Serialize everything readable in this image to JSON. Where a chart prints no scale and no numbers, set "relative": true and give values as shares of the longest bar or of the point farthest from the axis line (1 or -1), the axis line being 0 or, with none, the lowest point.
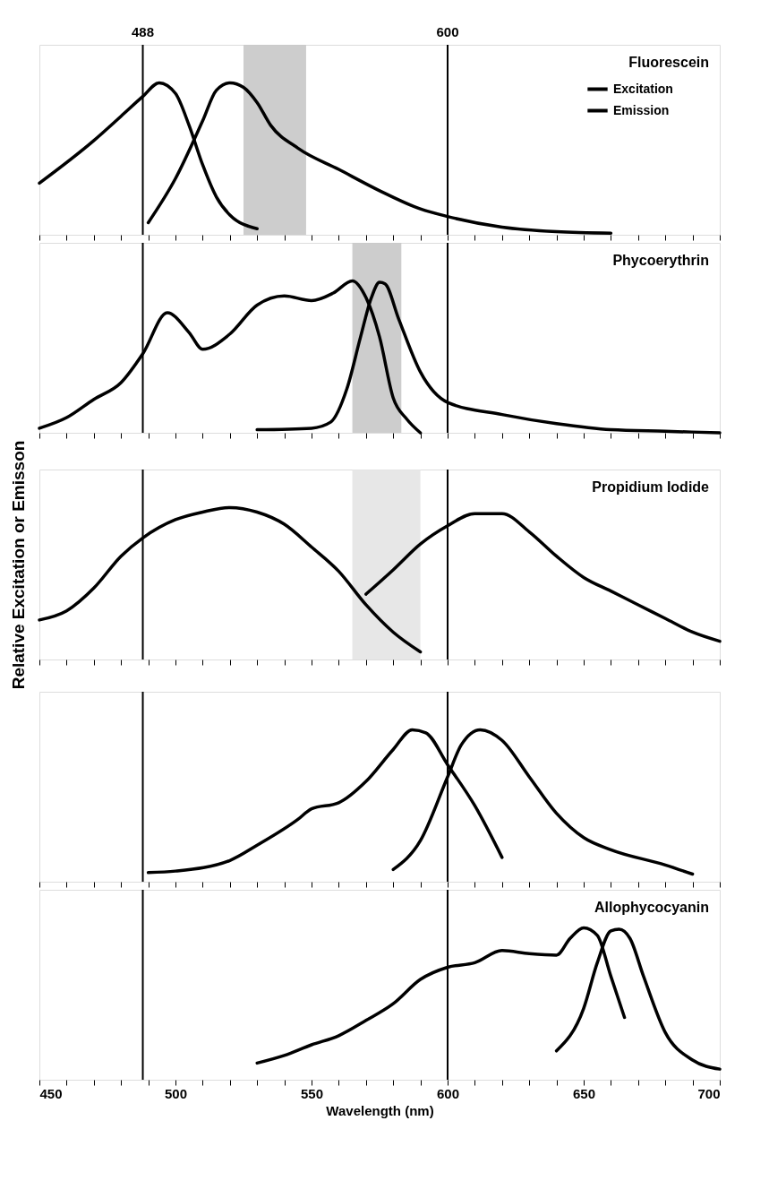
{
  "chart_data": [
    {
      "type": "line",
      "title": "Fluorescein",
      "relative": true,
      "xlim": [
        450,
        700
      ],
      "xticks": [
        {
          "value": 450,
          "label": null
        },
        {
          "value": 460,
          "label": null
        },
        {
          "value": 470,
          "label": null
        },
        {
          "value": 480,
          "label": null
        },
        {
          "value": 490,
          "label": null
        },
        {
          "value": 500,
          "label": null
        },
        {
          "value": 510,
          "label": null
        },
        {
          "value": 520,
          "label": null
        },
        {
          "value": 530,
          "label": null
        },
        {
          "value": 540,
          "label": null
        },
        {
          "value": 550,
          "label": null
        },
        {
          "value": 560,
          "label": null
        },
        {
          "value": 570,
          "label": null
        },
        {
          "value": 580,
          "label": null
        },
        {
          "value": 590,
          "label": null
        },
        {
          "value": 600,
          "label": null
        },
        {
          "value": 610,
          "label": null
        },
        {
          "value": 620,
          "label": null
        },
        {
          "value": 630,
          "label": null
        },
        {
          "value": 640,
          "label": null
        },
        {
          "value": 650,
          "label": null
        },
        {
          "value": 660,
          "label": null
        },
        {
          "value": 670,
          "label": null
        },
        {
          "value": 680,
          "label": null
        },
        {
          "value": 690,
          "label": null
        },
        {
          "value": 700,
          "label": null
        }
      ],
      "tick_labels": false,
      "legend": "top right",
      "line_style": "solid",
      "marker": "none",
      "ref_lines": [
        {
          "axis": "x",
          "value": 488,
          "label": "488",
          "color": "#000000"
        },
        {
          "axis": "x",
          "value": 600,
          "label": "600",
          "color": "#000000"
        }
      ],
      "bands": [
        {
          "axis": "x",
          "from": 525,
          "to": 548,
          "color": "#c8c8c8"
        }
      ],
      "series": [
        {
          "name": "Excitation",
          "color": "#000000",
          "x": [
            450,
            470,
            480,
            488,
            494,
            500,
            505,
            510,
            515,
            520,
            530
          ],
          "values": [
            0.34,
            0.62,
            0.78,
            0.91,
            1.0,
            0.93,
            0.72,
            0.46,
            0.25,
            0.13,
            0.04
          ]
        },
        {
          "name": "Emission",
          "color": "#000000",
          "x": [
            490,
            500,
            510,
            515,
            520,
            525,
            530,
            535,
            545,
            560,
            575,
            590,
            600,
            620,
            640,
            660
          ],
          "values": [
            0.08,
            0.37,
            0.75,
            0.95,
            1.0,
            0.97,
            0.87,
            0.72,
            0.57,
            0.43,
            0.29,
            0.17,
            0.12,
            0.05,
            0.02,
            0.01
          ]
        }
      ]
    },
    {
      "type": "line",
      "title": "Phycoerythrin",
      "relative": true,
      "xlim": [
        450,
        700
      ],
      "xticks": [
        {
          "value": 450,
          "label": null
        },
        {
          "value": 460,
          "label": null
        },
        {
          "value": 470,
          "label": null
        },
        {
          "value": 480,
          "label": null
        },
        {
          "value": 490,
          "label": null
        },
        {
          "value": 500,
          "label": null
        },
        {
          "value": 510,
          "label": null
        },
        {
          "value": 520,
          "label": null
        },
        {
          "value": 530,
          "label": null
        },
        {
          "value": 540,
          "label": null
        },
        {
          "value": 550,
          "label": null
        },
        {
          "value": 560,
          "label": null
        },
        {
          "value": 570,
          "label": null
        },
        {
          "value": 580,
          "label": null
        },
        {
          "value": 590,
          "label": null
        },
        {
          "value": 600,
          "label": null
        },
        {
          "value": 610,
          "label": null
        },
        {
          "value": 620,
          "label": null
        },
        {
          "value": 630,
          "label": null
        },
        {
          "value": 640,
          "label": null
        },
        {
          "value": 650,
          "label": null
        },
        {
          "value": 660,
          "label": null
        },
        {
          "value": 670,
          "label": null
        },
        {
          "value": 680,
          "label": null
        },
        {
          "value": 690,
          "label": null
        },
        {
          "value": 700,
          "label": null
        }
      ],
      "tick_labels": false,
      "line_style": "solid",
      "marker": "none",
      "ref_lines": [
        {
          "axis": "x",
          "value": 488,
          "color": "#000000"
        },
        {
          "axis": "x",
          "value": 600,
          "color": "#000000"
        }
      ],
      "bands": [
        {
          "axis": "x",
          "from": 565,
          "to": 583,
          "color": "#c8c8c8"
        }
      ],
      "series": [
        {
          "color": "#000000",
          "x": [
            450,
            460,
            470,
            480,
            488,
            497,
            505,
            510,
            520,
            530,
            540,
            550,
            558,
            565,
            570,
            575,
            580,
            585,
            590
          ],
          "values": [
            0.03,
            0.1,
            0.22,
            0.33,
            0.52,
            0.79,
            0.66,
            0.55,
            0.65,
            0.84,
            0.9,
            0.87,
            0.92,
            1.0,
            0.89,
            0.63,
            0.23,
            0.09,
            0.0
          ]
        },
        {
          "color": "#000000",
          "x": [
            530,
            550,
            557,
            563,
            568,
            572,
            575,
            577,
            582,
            590,
            600,
            620,
            640,
            660,
            680,
            700
          ],
          "values": [
            0.02,
            0.03,
            0.07,
            0.29,
            0.63,
            0.89,
            0.99,
            0.98,
            0.75,
            0.4,
            0.2,
            0.12,
            0.06,
            0.02,
            0.01,
            0.0
          ]
        }
      ]
    },
    {
      "type": "line",
      "title": "Propidium Iodide",
      "ylabel": "Relative Excitation or Emisson",
      "relative": true,
      "xlim": [
        450,
        700
      ],
      "xticks": [
        {
          "value": 450,
          "label": null
        },
        {
          "value": 460,
          "label": null
        },
        {
          "value": 470,
          "label": null
        },
        {
          "value": 480,
          "label": null
        },
        {
          "value": 490,
          "label": null
        },
        {
          "value": 500,
          "label": null
        },
        {
          "value": 510,
          "label": null
        },
        {
          "value": 520,
          "label": null
        },
        {
          "value": 530,
          "label": null
        },
        {
          "value": 540,
          "label": null
        },
        {
          "value": 550,
          "label": null
        },
        {
          "value": 560,
          "label": null
        },
        {
          "value": 570,
          "label": null
        },
        {
          "value": 580,
          "label": null
        },
        {
          "value": 590,
          "label": null
        },
        {
          "value": 600,
          "label": null
        },
        {
          "value": 610,
          "label": null
        },
        {
          "value": 620,
          "label": null
        },
        {
          "value": 630,
          "label": null
        },
        {
          "value": 640,
          "label": null
        },
        {
          "value": 650,
          "label": null
        },
        {
          "value": 660,
          "label": null
        },
        {
          "value": 670,
          "label": null
        },
        {
          "value": 680,
          "label": null
        },
        {
          "value": 690,
          "label": null
        },
        {
          "value": 700,
          "label": null
        }
      ],
      "tick_labels": false,
      "line_style": "solid",
      "marker": "none",
      "ref_lines": [
        {
          "axis": "x",
          "value": 488,
          "color": "#000000"
        },
        {
          "axis": "x",
          "value": 600,
          "color": "#000000"
        }
      ],
      "bands": [
        {
          "axis": "x",
          "from": 565,
          "to": 590,
          "color": "#e4e4e4"
        }
      ],
      "series": [
        {
          "color": "#000000",
          "x": [
            450,
            460,
            470,
            480,
            488,
            500,
            510,
            520,
            530,
            540,
            550,
            560,
            570,
            580,
            590
          ],
          "values": [
            0.26,
            0.32,
            0.47,
            0.68,
            0.8,
            0.92,
            0.97,
            1.0,
            0.97,
            0.89,
            0.74,
            0.58,
            0.36,
            0.18,
            0.05
          ]
        },
        {
          "color": "#000000",
          "x": [
            570,
            580,
            590,
            600,
            610,
            620,
            630,
            640,
            650,
            660,
            670,
            680,
            690,
            700
          ],
          "values": [
            0.43,
            0.59,
            0.76,
            0.88,
            0.96,
            0.96,
            0.84,
            0.68,
            0.54,
            0.45,
            0.36,
            0.27,
            0.18,
            0.12
          ]
        }
      ]
    },
    {
      "type": "line",
      "relative": true,
      "xlim": [
        450,
        700
      ],
      "xticks": [
        {
          "value": 450,
          "label": null
        },
        {
          "value": 460,
          "label": null
        },
        {
          "value": 470,
          "label": null
        },
        {
          "value": 480,
          "label": null
        },
        {
          "value": 490,
          "label": null
        },
        {
          "value": 500,
          "label": null
        },
        {
          "value": 510,
          "label": null
        },
        {
          "value": 520,
          "label": null
        },
        {
          "value": 530,
          "label": null
        },
        {
          "value": 540,
          "label": null
        },
        {
          "value": 550,
          "label": null
        },
        {
          "value": 560,
          "label": null
        },
        {
          "value": 570,
          "label": null
        },
        {
          "value": 580,
          "label": null
        },
        {
          "value": 590,
          "label": null
        },
        {
          "value": 600,
          "label": null
        },
        {
          "value": 610,
          "label": null
        },
        {
          "value": 620,
          "label": null
        },
        {
          "value": 630,
          "label": null
        },
        {
          "value": 640,
          "label": null
        },
        {
          "value": 650,
          "label": null
        },
        {
          "value": 660,
          "label": null
        },
        {
          "value": 670,
          "label": null
        },
        {
          "value": 680,
          "label": null
        },
        {
          "value": 690,
          "label": null
        },
        {
          "value": 700,
          "label": null
        }
      ],
      "tick_labels": false,
      "line_style": "solid",
      "marker": "none",
      "ref_lines": [
        {
          "axis": "x",
          "value": 488,
          "color": "#000000"
        },
        {
          "axis": "x",
          "value": 600,
          "color": "#000000"
        }
      ],
      "series": [
        {
          "color": "#000000",
          "x": [
            490,
            500,
            520,
            530,
            545,
            550,
            560,
            570,
            580,
            587,
            592,
            600,
            610,
            620
          ],
          "values": [
            0.06,
            0.07,
            0.14,
            0.24,
            0.41,
            0.48,
            0.52,
            0.66,
            0.87,
            1.0,
            0.98,
            0.77,
            0.5,
            0.16
          ]
        },
        {
          "color": "#000000",
          "x": [
            580,
            590,
            600,
            605,
            612,
            620,
            630,
            640,
            650,
            660,
            680,
            690
          ],
          "values": [
            0.08,
            0.27,
            0.69,
            0.9,
            1.0,
            0.93,
            0.69,
            0.45,
            0.29,
            0.21,
            0.11,
            0.05
          ]
        }
      ]
    },
    {
      "type": "line",
      "title": "Allophycocyanin",
      "xlabel": "Wavelength (nm)",
      "relative": true,
      "xlim": [
        450,
        700
      ],
      "xticks": [
        450,
        {
          "value": 460,
          "label": null
        },
        {
          "value": 470,
          "label": null
        },
        {
          "value": 480,
          "label": null
        },
        {
          "value": 490,
          "label": null
        },
        500,
        {
          "value": 510,
          "label": null
        },
        {
          "value": 520,
          "label": null
        },
        {
          "value": 530,
          "label": null
        },
        {
          "value": 540,
          "label": null
        },
        550,
        {
          "value": 560,
          "label": null
        },
        {
          "value": 570,
          "label": null
        },
        {
          "value": 580,
          "label": null
        },
        {
          "value": 590,
          "label": null
        },
        600,
        {
          "value": 610,
          "label": null
        },
        {
          "value": 620,
          "label": null
        },
        {
          "value": 630,
          "label": null
        },
        {
          "value": 640,
          "label": null
        },
        650,
        {
          "value": 660,
          "label": null
        },
        {
          "value": 670,
          "label": null
        },
        {
          "value": 680,
          "label": null
        },
        {
          "value": 690,
          "label": null
        },
        700
      ],
      "tick_labels": "x",
      "line_style": "solid",
      "marker": "none",
      "ref_lines": [
        {
          "axis": "x",
          "value": 488,
          "color": "#000000"
        },
        {
          "axis": "x",
          "value": 600,
          "color": "#000000"
        }
      ],
      "series": [
        {
          "color": "#000000",
          "x": [
            530,
            540,
            550,
            560,
            570,
            580,
            590,
            600,
            610,
            620,
            630,
            640,
            645,
            650,
            655,
            660,
            665
          ],
          "values": [
            0.11,
            0.16,
            0.23,
            0.29,
            0.39,
            0.5,
            0.66,
            0.74,
            0.77,
            0.85,
            0.83,
            0.82,
            0.93,
            1.0,
            0.95,
            0.68,
            0.41
          ]
        },
        {
          "color": "#000000",
          "x": [
            640,
            650,
            655,
            660,
            663,
            667,
            672,
            680,
            690,
            700
          ],
          "values": [
            0.19,
            0.47,
            0.77,
            0.98,
            0.99,
            0.93,
            0.68,
            0.31,
            0.13,
            0.07
          ]
        }
      ]
    }
  ]
}
